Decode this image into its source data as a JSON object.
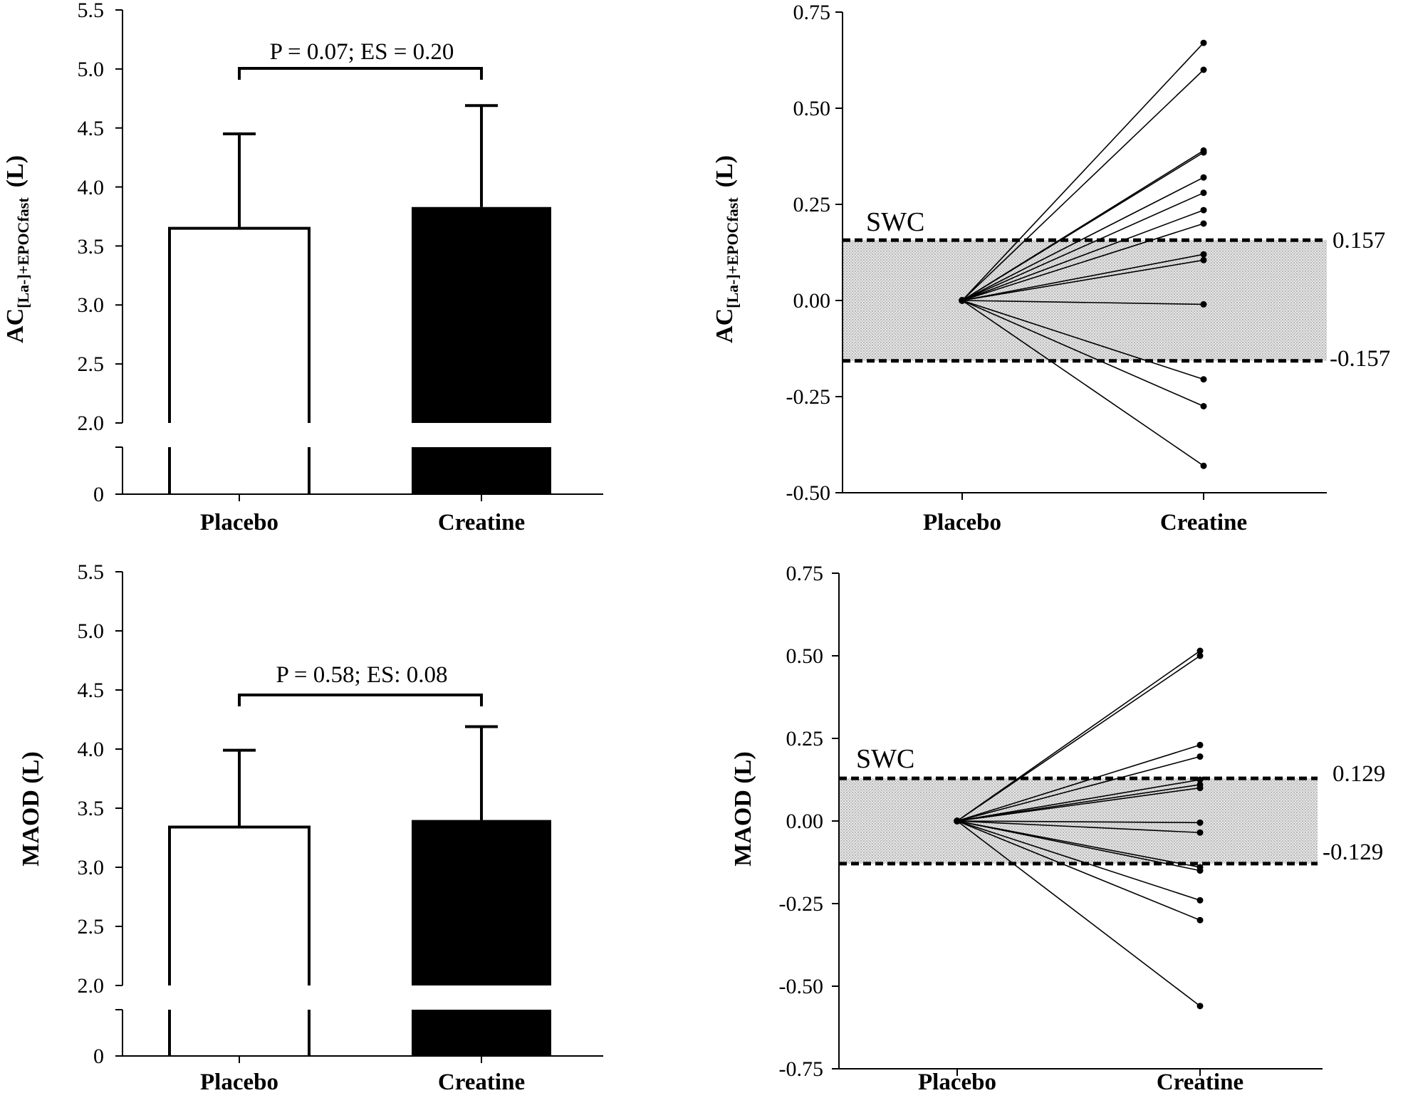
{
  "chart_data": [
    {
      "type": "bar",
      "categories": [
        "Placebo",
        "Creatine"
      ],
      "values": [
        3.65,
        3.83
      ],
      "error_upper": [
        4.45,
        4.69
      ],
      "ylabel_main": "AC",
      "ylabel_sub": "[La-]+EPOCfast",
      "ylabel_unit": "(L)",
      "yticks": [
        "5.5",
        "5.0",
        "4.5",
        "4.0",
        "3.5",
        "3.0",
        "2.5",
        "2.0",
        "0"
      ],
      "ylim": [
        2.0,
        5.5
      ],
      "axis_break": true,
      "annotation": "P = 0.07; ES = 0.20",
      "colors": [
        "#ffffff",
        "#000000"
      ]
    },
    {
      "type": "line",
      "x": [
        "Placebo",
        "Creatine"
      ],
      "ylabel_main": "AC",
      "ylabel_sub": "[La-]+EPOCfast",
      "ylabel_unit": "(L)",
      "yticks": [
        "0.75",
        "0.50",
        "0.25",
        "0.00",
        "-0.25",
        "-0.50"
      ],
      "ylim": [
        -0.5,
        0.75
      ],
      "swc_label": "SWC",
      "swc_upper_label": "0.157",
      "swc_lower_label": "-0.157",
      "swc": 0.157,
      "series_start": 0.0,
      "series_end": [
        0.67,
        0.6,
        0.39,
        0.385,
        0.32,
        0.28,
        0.235,
        0.2,
        0.12,
        0.105,
        -0.01,
        -0.205,
        -0.275,
        -0.43
      ]
    },
    {
      "type": "bar",
      "categories": [
        "Placebo",
        "Creatine"
      ],
      "values": [
        3.34,
        3.4
      ],
      "error_upper": [
        3.99,
        4.19
      ],
      "ylabel_main": "MAOD (L)",
      "yticks": [
        "5.5",
        "5.0",
        "4.5",
        "4.0",
        "3.5",
        "3.0",
        "2.5",
        "2.0",
        "0"
      ],
      "ylim": [
        2.0,
        5.5
      ],
      "axis_break": true,
      "annotation": "P = 0.58; ES: 0.08",
      "colors": [
        "#ffffff",
        "#000000"
      ]
    },
    {
      "type": "line",
      "x": [
        "Placebo",
        "Creatine"
      ],
      "ylabel_main": "MAOD (L)",
      "yticks": [
        "0.75",
        "0.50",
        "0.25",
        "0.00",
        "-0.25",
        "-0.50",
        "-0.75"
      ],
      "ylim": [
        -0.75,
        0.75
      ],
      "swc_label": "SWC",
      "swc_upper_label": "0.129",
      "swc_lower_label": "-0.129",
      "swc": 0.129,
      "series_start": 0.0,
      "series_end": [
        0.515,
        0.5,
        0.23,
        0.195,
        0.125,
        0.11,
        0.1,
        -0.005,
        -0.035,
        -0.14,
        -0.15,
        -0.24,
        -0.3,
        -0.56
      ]
    }
  ]
}
